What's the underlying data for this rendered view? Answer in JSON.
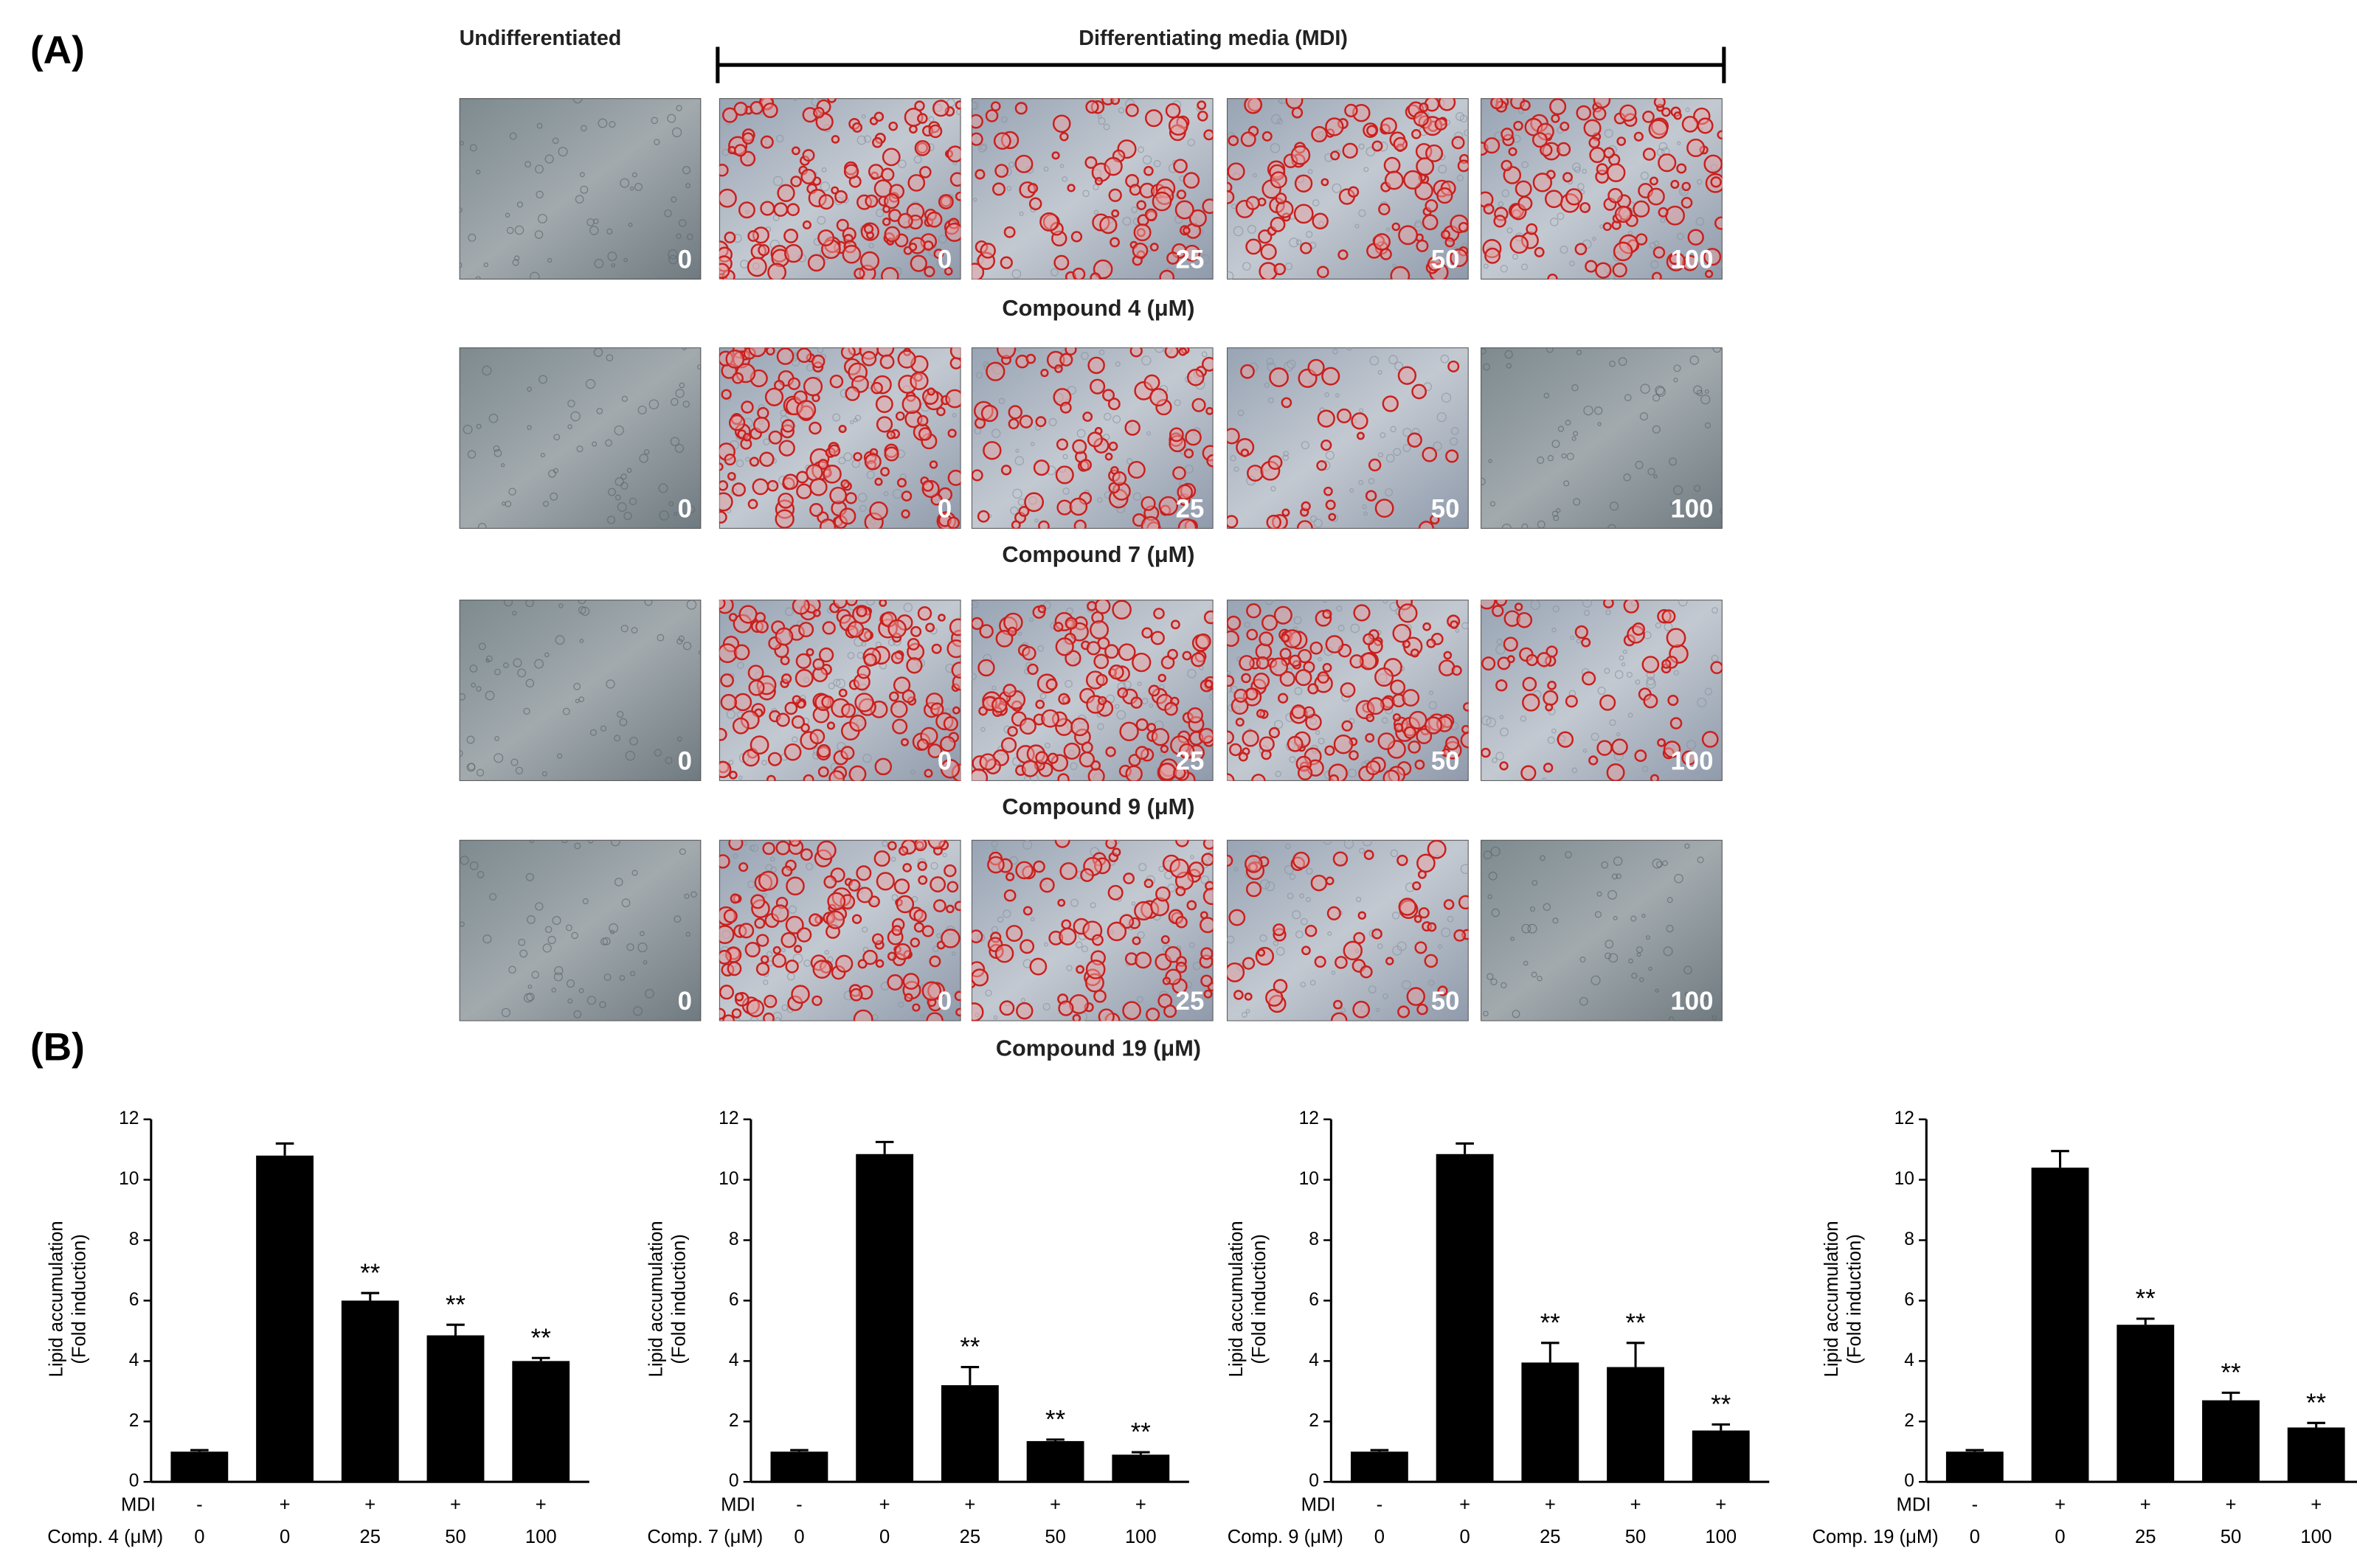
{
  "panel_a": {
    "label": "(A)",
    "undifferentiated": "Undifferentiated",
    "differentiating": "Differentiating media (MDI)",
    "rows": [
      {
        "caption": "Compound 4 (μM)",
        "doses": [
          "0",
          "0",
          "25",
          "50",
          "100"
        ]
      },
      {
        "caption": "Compound 7 (μM)",
        "doses": [
          "0",
          "0",
          "25",
          "50",
          "100"
        ]
      },
      {
        "caption": "Compound 9 (μM)",
        "doses": [
          "0",
          "0",
          "25",
          "50",
          "100"
        ]
      },
      {
        "caption": "Compound 19 (μM)",
        "doses": [
          "0",
          "0",
          "25",
          "50",
          "100"
        ]
      }
    ]
  },
  "panel_b_label": "(B)",
  "chart_data": [
    {
      "type": "bar",
      "y_label": [
        "Lipid accumulation",
        "(Fold induction)"
      ],
      "mdi_label": "MDI",
      "mdi": [
        "-",
        "+",
        "+",
        "+",
        "+"
      ],
      "category_label": "Comp. 4 (μM)",
      "categories": [
        "0",
        "0",
        "25",
        "50",
        "100"
      ],
      "values": [
        1.0,
        10.8,
        6.0,
        4.85,
        4.0
      ],
      "errors": [
        0.05,
        0.4,
        0.25,
        0.35,
        0.1
      ],
      "significance": [
        null,
        null,
        "**",
        "**",
        "**"
      ],
      "color": "#000000",
      "ylim": [
        0,
        12
      ],
      "yticks": [
        0,
        2,
        4,
        6,
        8,
        10,
        12
      ]
    },
    {
      "type": "bar",
      "y_label": [
        "Lipid accumulation",
        "(Fold induction)"
      ],
      "mdi_label": "MDI",
      "mdi": [
        "-",
        "+",
        "+",
        "+",
        "+"
      ],
      "category_label": "Comp. 7 (μM)",
      "categories": [
        "0",
        "0",
        "25",
        "50",
        "100"
      ],
      "values": [
        1.0,
        10.85,
        3.2,
        1.35,
        0.9
      ],
      "errors": [
        0.05,
        0.4,
        0.6,
        0.05,
        0.08
      ],
      "significance": [
        null,
        null,
        "**",
        "**",
        "**"
      ],
      "color": "#000000",
      "ylim": [
        0,
        12
      ],
      "yticks": [
        0,
        2,
        4,
        6,
        8,
        10,
        12
      ]
    },
    {
      "type": "bar",
      "y_label": [
        "Lipid accumulation",
        "(Fold induction)"
      ],
      "mdi_label": "MDI",
      "mdi": [
        "-",
        "+",
        "+",
        "+",
        "+"
      ],
      "category_label": "Comp. 9 (μM)",
      "categories": [
        "0",
        "0",
        "25",
        "50",
        "100"
      ],
      "values": [
        1.0,
        10.85,
        3.95,
        3.8,
        1.7
      ],
      "errors": [
        0.05,
        0.35,
        0.65,
        0.8,
        0.2
      ],
      "significance": [
        null,
        null,
        "**",
        "**",
        "**"
      ],
      "color": "#000000",
      "ylim": [
        0,
        12
      ],
      "yticks": [
        0,
        2,
        4,
        6,
        8,
        10,
        12
      ]
    },
    {
      "type": "bar",
      "y_label": [
        "Lipid accumulation",
        "(Fold induction)"
      ],
      "mdi_label": "MDI",
      "mdi": [
        "-",
        "+",
        "+",
        "+",
        "+"
      ],
      "category_label": "Comp. 19 (μM)",
      "categories": [
        "0",
        "0",
        "25",
        "50",
        "100"
      ],
      "values": [
        1.0,
        10.4,
        5.2,
        2.7,
        1.8
      ],
      "errors": [
        0.05,
        0.55,
        0.2,
        0.25,
        0.15
      ],
      "significance": [
        null,
        null,
        "**",
        "**",
        "**"
      ],
      "color": "#000000",
      "ylim": [
        0,
        12
      ],
      "yticks": [
        0,
        2,
        4,
        6,
        8,
        10,
        12
      ]
    }
  ]
}
